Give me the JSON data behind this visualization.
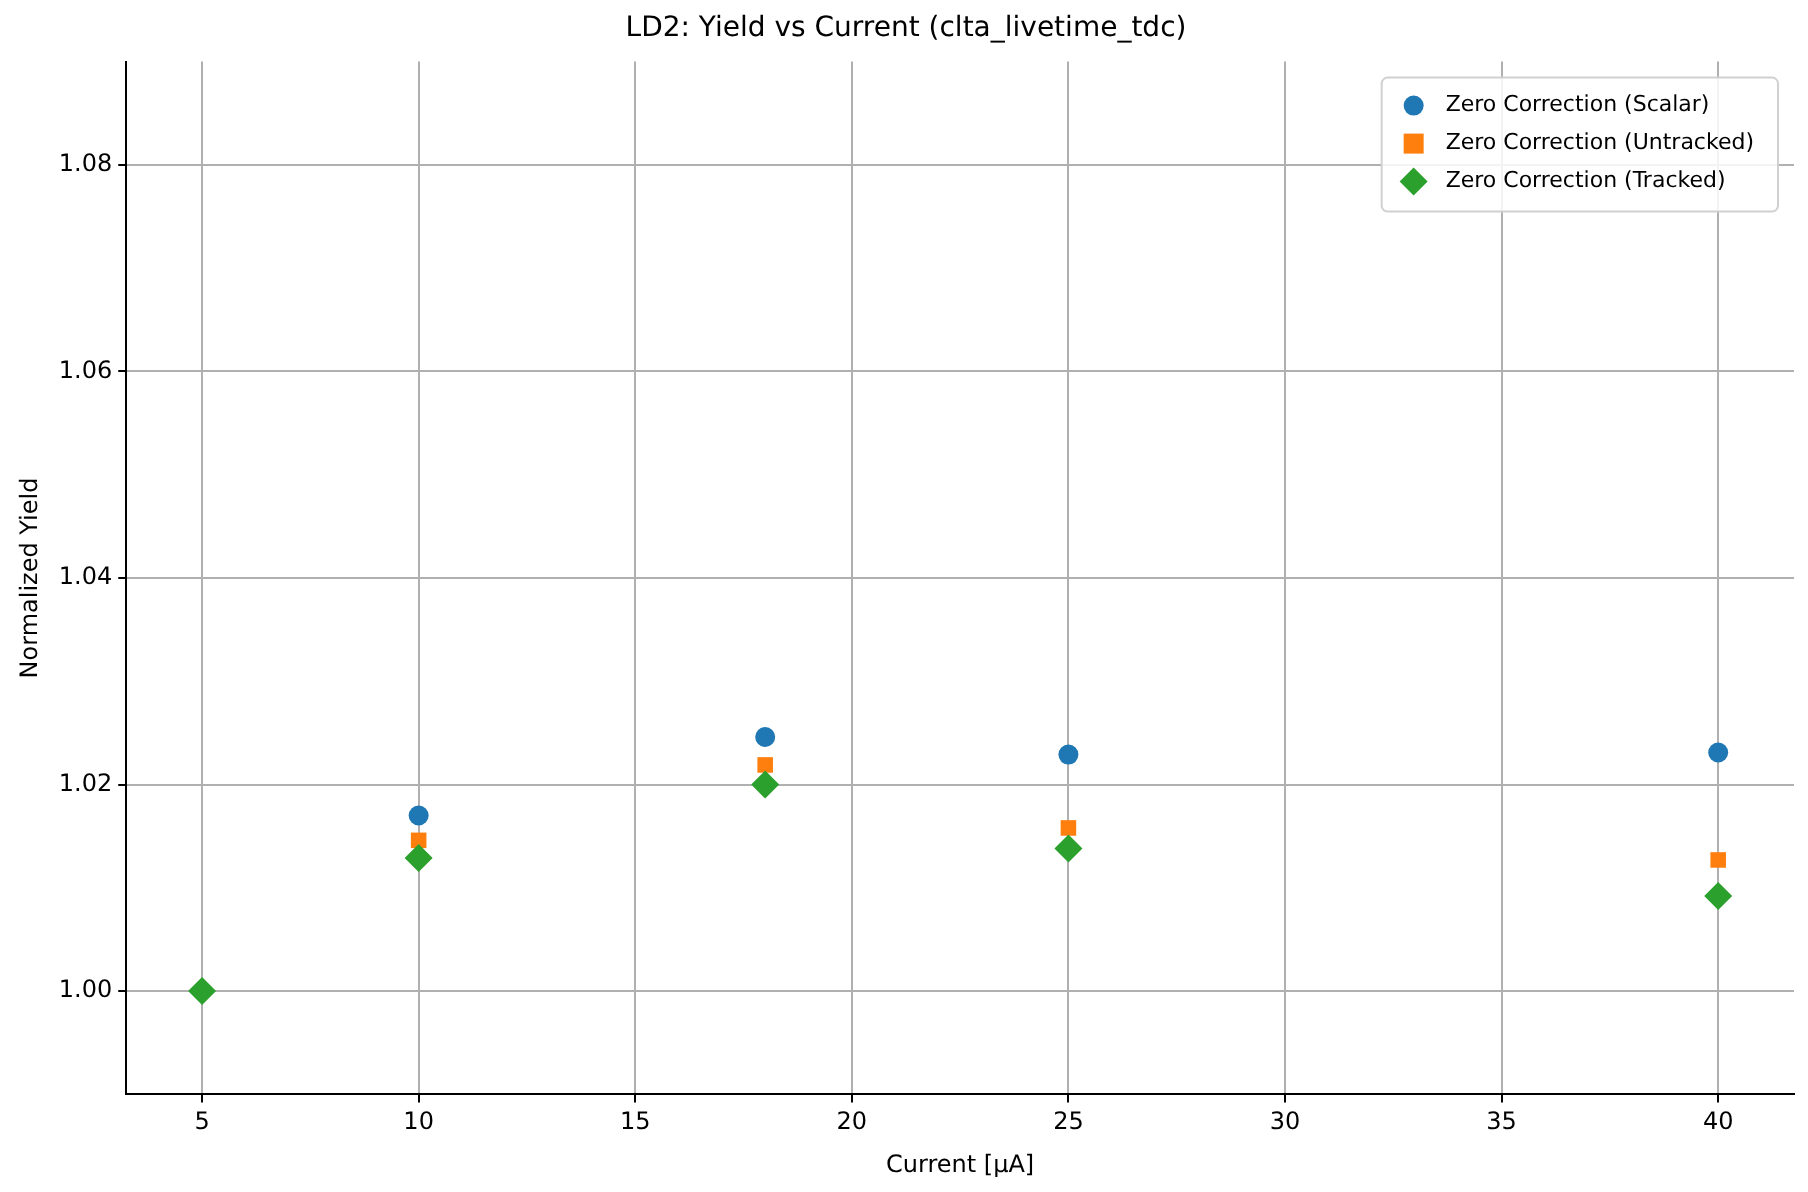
{
  "chart_data": {
    "type": "scatter",
    "title": "LD2: Yield vs Current (clta_livetime_tdc)",
    "xlabel": "Current [μA]",
    "ylabel": "Normalized Yield",
    "x": [
      5,
      10,
      18,
      25,
      40
    ],
    "series": [
      {
        "name": "Zero Correction (Scalar)",
        "color": "#1f77b4",
        "marker": "circle",
        "values": [
          null,
          1.017,
          1.0246,
          1.0229,
          1.0231
        ]
      },
      {
        "name": "Zero Correction (Untracked)",
        "color": "#ff7f0e",
        "marker": "square",
        "values": [
          null,
          1.0146,
          1.0219,
          1.0158,
          1.0127
        ]
      },
      {
        "name": "Zero Correction (Tracked)",
        "color": "#2ca02c",
        "marker": "diamond",
        "values": [
          1.0,
          1.0129,
          1.02,
          1.0138,
          1.0092
        ]
      }
    ],
    "xlim": [
      3.25,
      41.75
    ],
    "xticks": [
      5,
      10,
      15,
      20,
      25,
      30,
      35,
      40
    ],
    "ylim": [
      0.99,
      1.09
    ],
    "yticks": [
      {
        "value": 1.0,
        "label": "1.00"
      },
      {
        "value": 1.02,
        "label": "1.02"
      },
      {
        "value": 1.04,
        "label": "1.04"
      },
      {
        "value": 1.06,
        "label": "1.06"
      },
      {
        "value": 1.08,
        "label": "1.08"
      }
    ],
    "grid": true,
    "legend": "top right"
  }
}
